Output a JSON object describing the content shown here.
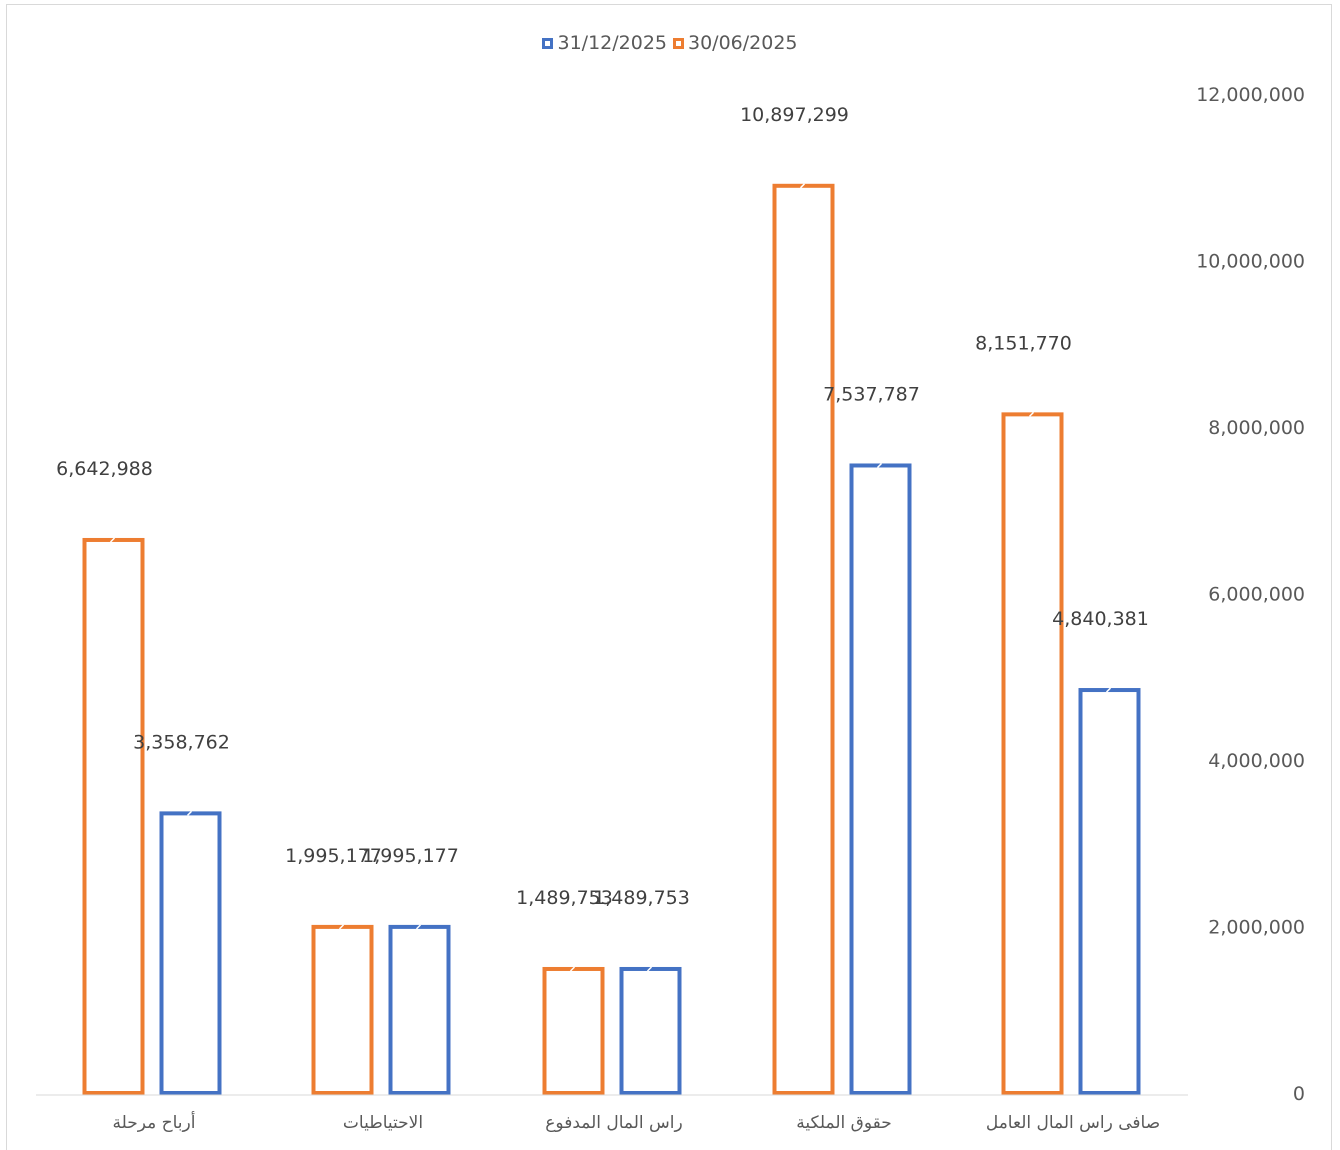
{
  "legend": [
    {
      "label": "31/12/2025",
      "color": "#4472C4"
    },
    {
      "label": "30/06/2025",
      "color": "#ED7D31"
    }
  ],
  "chart_data": {
    "type": "bar",
    "orientation": "vertical",
    "y_axis_side": "right",
    "legend_position": "top",
    "grid": false,
    "categories": [
      "صافى راس المال العامل",
      "حقوق الملكية",
      "راس المال المدفوع",
      "الاحتياطيات",
      "أرباح مرحلة"
    ],
    "series": [
      {
        "name": "30/06/2025",
        "color": "#ED7D31",
        "values": [
          8151770,
          10897299,
          1489753,
          1995177,
          6642988
        ]
      },
      {
        "name": "31/12/2025",
        "color": "#4472C4",
        "values": [
          4840381,
          7537787,
          1489753,
          1995177,
          3358762
        ]
      }
    ],
    "data_labels": {
      "30/06/2025": [
        "8,151,770",
        "10,897,299",
        "1,489,753",
        "1,995,177",
        "6,642,988"
      ],
      "31/12/2025": [
        "4,840,381",
        "7,537,787",
        "1,489,753",
        "1,995,177",
        "3,358,762"
      ]
    },
    "ylim": [
      0,
      12000000
    ],
    "y_ticks": [
      0,
      2000000,
      4000000,
      6000000,
      8000000,
      10000000,
      12000000
    ],
    "y_tick_labels": [
      "0",
      "2,000,000",
      "4,000,000",
      "6,000,000",
      "8,000,000",
      "10,000,000",
      "12,000,000"
    ]
  }
}
